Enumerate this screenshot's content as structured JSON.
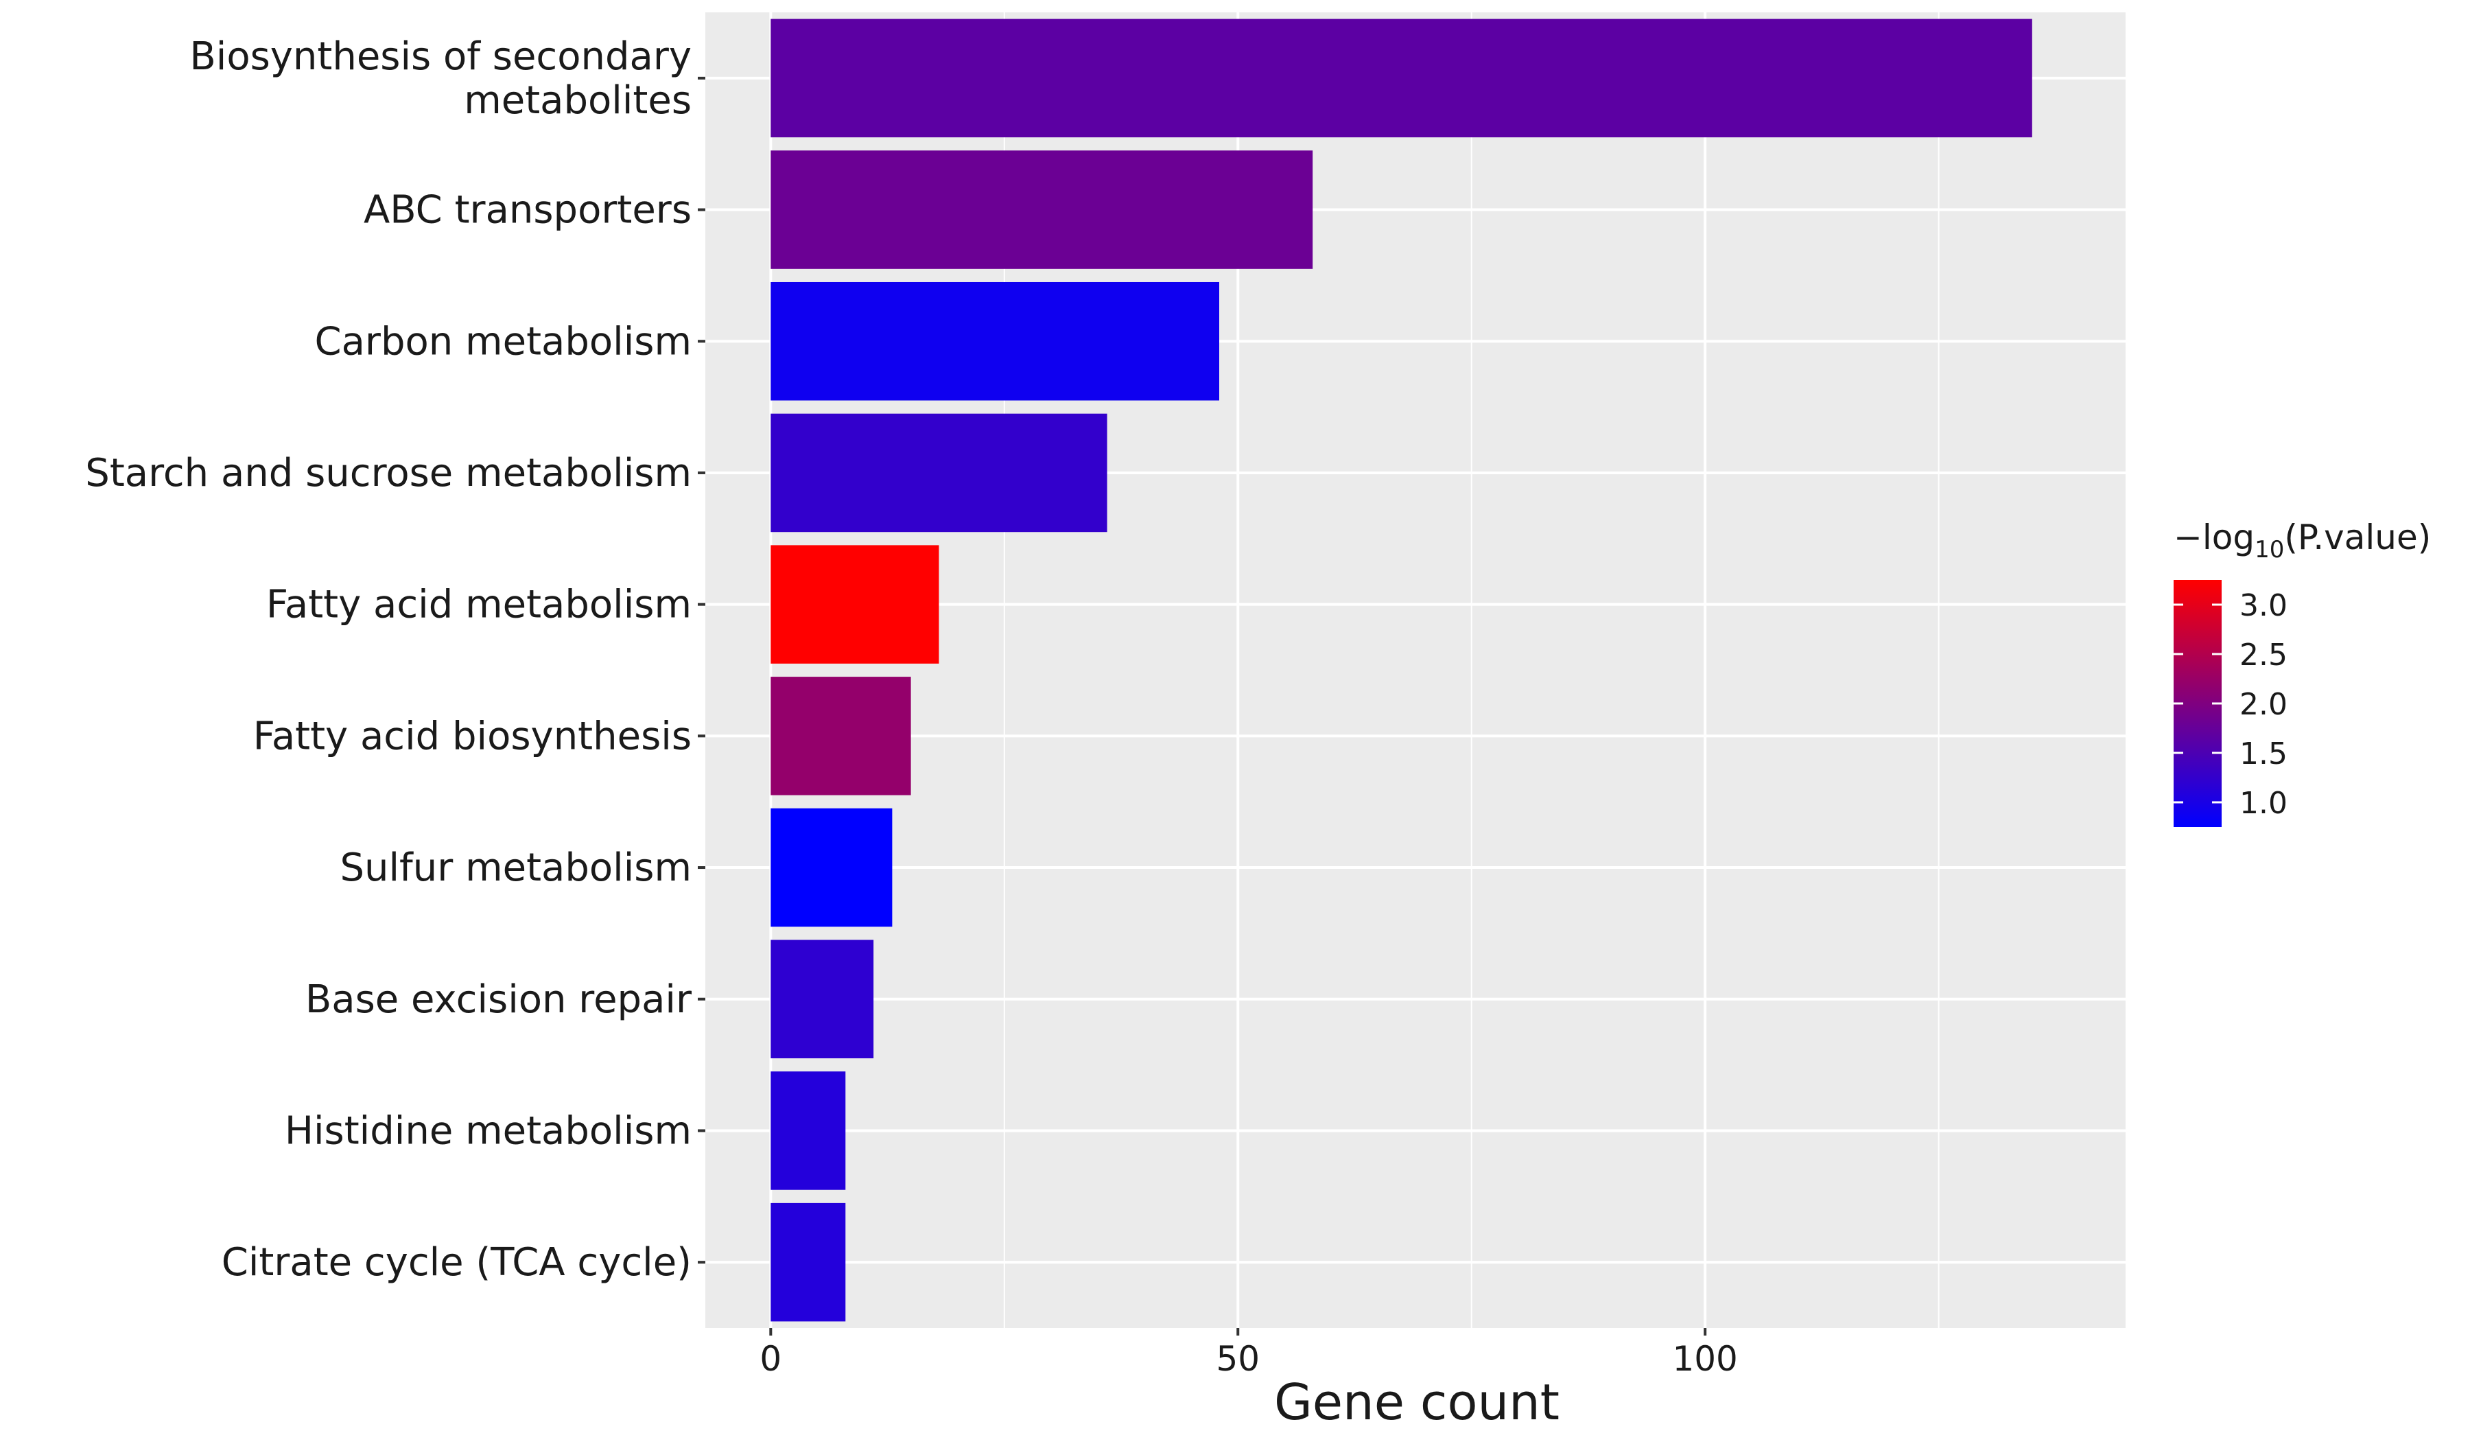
{
  "chart_data": {
    "type": "bar",
    "orientation": "horizontal",
    "xlabel": "Gene count",
    "ylabel": "",
    "xlim": [
      -7,
      145
    ],
    "x_ticks": [
      0,
      50,
      100
    ],
    "x_minor_ticks": [
      25,
      75,
      125
    ],
    "grid": true,
    "categories": [
      "Biosynthesis of secondary\nmetabolites",
      "ABC transporters",
      "Carbon metabolism",
      "Starch and sucrose metabolism",
      "Fatty acid metabolism",
      "Fatty acid biosynthesis",
      "Sulfur metabolism",
      "Base excision repair",
      "Histidine metabolism",
      "Citrate cycle (TCA cycle)"
    ],
    "values": [
      135,
      58,
      48,
      36,
      18,
      15,
      13,
      11,
      8,
      8
    ],
    "neg_log10_pvalue": [
      1.65,
      1.8,
      0.9,
      1.25,
      3.25,
      2.2,
      0.75,
      1.2,
      1.1,
      1.1
    ],
    "legend": {
      "title_prefix": "−log",
      "title_subscript": "10",
      "title_suffix": "(P.value)",
      "ticks": [
        3.0,
        2.5,
        2.0,
        1.5,
        1.0
      ],
      "tick_labels": [
        "3.0",
        "2.5",
        "2.0",
        "1.5",
        "1.0"
      ],
      "min": 0.75,
      "max": 3.25,
      "low_color": "#0000FF",
      "high_color": "#FF0000",
      "placement": "right"
    },
    "colors": {
      "panel_background": "#EBEBEB",
      "grid_line": "#FFFFFF",
      "axis_text": "#1a1a1a"
    }
  }
}
